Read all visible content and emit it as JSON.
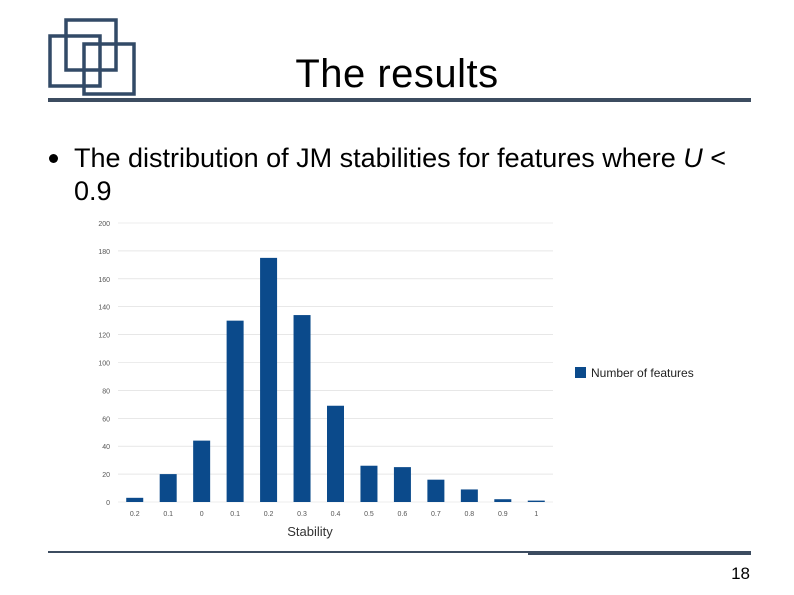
{
  "slide": {
    "title": "The results",
    "bullet": {
      "text_before": "The distribution of JM stabilities for features where ",
      "italic_var": "U",
      "text_after": " < 0.9"
    },
    "page_number": "18"
  },
  "colors": {
    "bar": "#0b4a8b",
    "rule": "#3c4c60",
    "logo": "#324a67"
  },
  "chart_data": {
    "type": "bar",
    "categories": [
      "0.2",
      "0.1",
      "0",
      "0.1",
      "0.2",
      "0.3",
      "0.4",
      "0.5",
      "0.6",
      "0.7",
      "0.8",
      "0.9",
      "1"
    ],
    "series": [
      {
        "name": "Number of features",
        "values": [
          3,
          20,
          44,
          130,
          175,
          134,
          69,
          26,
          25,
          16,
          9,
          2,
          1
        ]
      }
    ],
    "xlabel": "Stability",
    "ylabel": "",
    "ylim": [
      0,
      200
    ],
    "yticks": [
      "0",
      "20",
      "40",
      "60",
      "80",
      "100",
      "120",
      "140",
      "160",
      "180",
      "200"
    ],
    "grid": true,
    "legend": "right"
  }
}
